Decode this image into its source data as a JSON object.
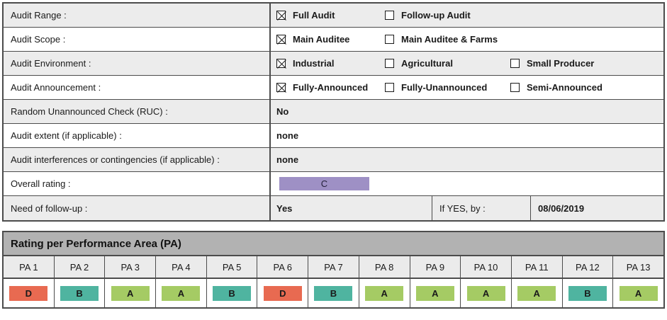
{
  "form": {
    "rows": [
      {
        "label": "Audit Range :",
        "options": [
          {
            "label": "Full Audit",
            "checked": true
          },
          {
            "label": "Follow-up Audit",
            "checked": false
          }
        ]
      },
      {
        "label": "Audit Scope :",
        "options": [
          {
            "label": "Main Auditee",
            "checked": true
          },
          {
            "label": "Main Auditee & Farms",
            "checked": false
          }
        ]
      },
      {
        "label": "Audit Environment :",
        "options": [
          {
            "label": "Industrial",
            "checked": true
          },
          {
            "label": "Agricultural",
            "checked": false
          },
          {
            "label": "Small Producer",
            "checked": false
          }
        ]
      },
      {
        "label": "Audit Announcement :",
        "options": [
          {
            "label": "Fully-Announced",
            "checked": true
          },
          {
            "label": "Fully-Unannounced",
            "checked": false
          },
          {
            "label": "Semi-Announced",
            "checked": false
          }
        ]
      },
      {
        "label": "Random Unannounced Check (RUC) :",
        "value": "No"
      },
      {
        "label": "Audit extent (if applicable) :",
        "value": "none"
      },
      {
        "label": "Audit interferences or contingencies (if applicable) :",
        "value": "none"
      },
      {
        "label": "Overall rating :",
        "rating": "C"
      },
      {
        "label": "Need of follow-up :",
        "value": "Yes",
        "if_yes_label": "If YES, by :",
        "date": "08/06/2019"
      }
    ]
  },
  "pa_table": {
    "title": "Rating per Performance Area (PA)",
    "columns": [
      "PA 1",
      "PA 2",
      "PA 3",
      "PA 4",
      "PA 5",
      "PA 6",
      "PA 7",
      "PA 8",
      "PA 9",
      "PA 10",
      "PA 11",
      "PA 12",
      "PA 13"
    ],
    "ratings": [
      "D",
      "B",
      "A",
      "A",
      "B",
      "D",
      "B",
      "A",
      "A",
      "A",
      "A",
      "B",
      "A"
    ]
  },
  "rating_colors": {
    "A": "#A5CB64",
    "B": "#4FB4A0",
    "C": "#9E90C5",
    "D": "#E86A51"
  }
}
